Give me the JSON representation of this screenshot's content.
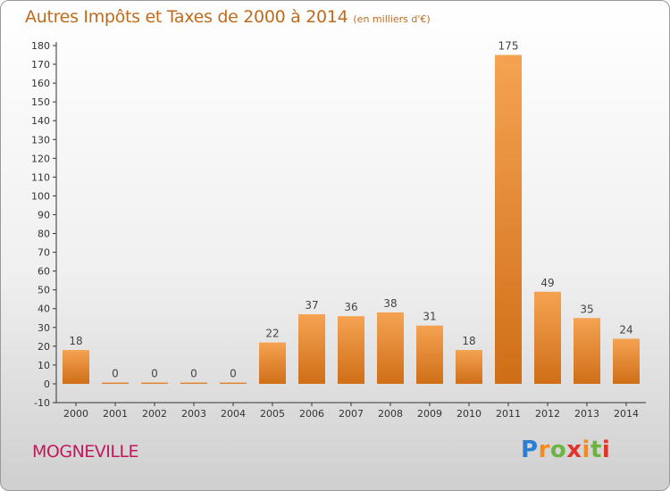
{
  "colors": {
    "bar_light": "#f5a352",
    "bar_dark": "#cf6e17",
    "title": "#c06a1c",
    "city": "#c2185b"
  },
  "city": "MOGNEVILLE",
  "logo": {
    "letters": [
      "P",
      "r",
      "o",
      "x",
      "i",
      "t",
      "i"
    ]
  },
  "chart_data": {
    "type": "bar",
    "title": "Autres Impôts et Taxes de 2000 à 2014",
    "subtitle": "(en milliers d'€)",
    "categories": [
      "2000",
      "2001",
      "2002",
      "2003",
      "2004",
      "2005",
      "2006",
      "2007",
      "2008",
      "2009",
      "2010",
      "2011",
      "2012",
      "2013",
      "2014"
    ],
    "values": [
      18,
      0,
      0,
      0,
      0,
      22,
      37,
      36,
      38,
      31,
      18,
      175,
      49,
      35,
      24
    ],
    "ylim": [
      -10,
      180
    ],
    "yticks": [
      -10,
      0,
      10,
      20,
      30,
      40,
      50,
      60,
      70,
      80,
      90,
      100,
      110,
      120,
      130,
      140,
      150,
      160,
      170,
      180
    ],
    "grid": false,
    "legend": "none"
  }
}
